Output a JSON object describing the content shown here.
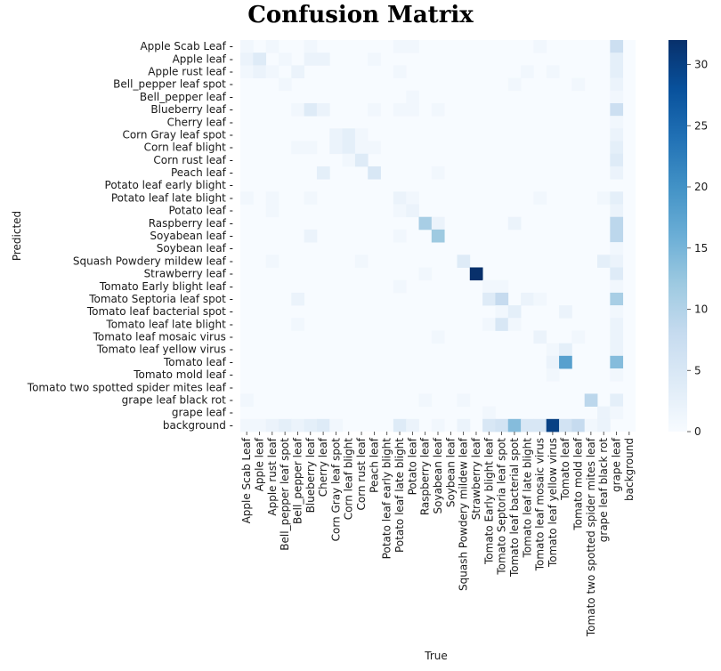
{
  "chart_data": {
    "type": "heatmap",
    "title": "Confusion Matrix",
    "xlabel": "True",
    "ylabel": "Predicted",
    "categories": [
      "Apple Scab Leaf",
      "Apple leaf",
      "Apple rust leaf",
      "Bell_pepper leaf spot",
      "Bell_pepper leaf",
      "Blueberry leaf",
      "Cherry leaf",
      "Corn Gray leaf spot",
      "Corn leaf blight",
      "Corn rust leaf",
      "Peach leaf",
      "Potato leaf early blight",
      "Potato leaf late blight",
      "Potato leaf",
      "Raspberry leaf",
      "Soyabean leaf",
      "Soybean leaf",
      "Squash Powdery mildew leaf",
      "Strawberry leaf",
      "Tomato Early blight leaf",
      "Tomato Septoria leaf spot",
      "Tomato leaf bacterial spot",
      "Tomato leaf late blight",
      "Tomato leaf mosaic virus",
      "Tomato leaf yellow virus",
      "Tomato leaf",
      "Tomato mold leaf",
      "Tomato two spotted spider mites leaf",
      "grape leaf black rot",
      "grape leaf",
      "background"
    ],
    "colorbar": {
      "min": 0,
      "max": 32,
      "ticks": [
        0,
        5,
        10,
        15,
        20,
        25,
        30
      ],
      "low_color": "#f7fbff",
      "high_color": "#08306b"
    },
    "cells": [
      [
        0,
        0,
        1
      ],
      [
        0,
        2,
        1
      ],
      [
        0,
        5,
        1
      ],
      [
        0,
        12,
        1
      ],
      [
        0,
        13,
        1
      ],
      [
        0,
        23,
        1
      ],
      [
        0,
        29,
        7
      ],
      [
        1,
        0,
        2
      ],
      [
        1,
        1,
        4
      ],
      [
        1,
        3,
        1
      ],
      [
        1,
        5,
        2
      ],
      [
        1,
        6,
        2
      ],
      [
        1,
        10,
        1
      ],
      [
        1,
        29,
        3
      ],
      [
        2,
        0,
        1
      ],
      [
        2,
        1,
        2
      ],
      [
        2,
        2,
        1
      ],
      [
        2,
        4,
        2
      ],
      [
        2,
        12,
        1
      ],
      [
        2,
        22,
        1
      ],
      [
        2,
        24,
        1
      ],
      [
        2,
        29,
        3
      ],
      [
        3,
        3,
        1
      ],
      [
        3,
        21,
        1
      ],
      [
        3,
        26,
        1
      ],
      [
        3,
        29,
        2
      ],
      [
        4,
        13,
        1
      ],
      [
        4,
        29,
        1
      ],
      [
        5,
        4,
        1
      ],
      [
        5,
        5,
        4
      ],
      [
        5,
        6,
        2
      ],
      [
        5,
        10,
        1
      ],
      [
        5,
        12,
        1
      ],
      [
        5,
        13,
        1
      ],
      [
        5,
        15,
        1
      ],
      [
        5,
        29,
        7
      ],
      [
        6,
        29,
        1
      ],
      [
        7,
        7,
        2
      ],
      [
        7,
        8,
        3
      ],
      [
        7,
        9,
        1
      ],
      [
        7,
        29,
        2
      ],
      [
        8,
        4,
        1
      ],
      [
        8,
        5,
        1
      ],
      [
        8,
        7,
        2
      ],
      [
        8,
        8,
        3
      ],
      [
        8,
        9,
        1
      ],
      [
        8,
        10,
        1
      ],
      [
        8,
        29,
        3
      ],
      [
        9,
        8,
        1
      ],
      [
        9,
        9,
        4
      ],
      [
        9,
        29,
        4
      ],
      [
        10,
        6,
        3
      ],
      [
        10,
        10,
        5
      ],
      [
        10,
        15,
        1
      ],
      [
        10,
        29,
        2
      ],
      [
        12,
        0,
        1
      ],
      [
        12,
        2,
        1
      ],
      [
        12,
        5,
        1
      ],
      [
        12,
        12,
        2
      ],
      [
        12,
        13,
        1
      ],
      [
        12,
        23,
        1
      ],
      [
        12,
        28,
        1
      ],
      [
        12,
        29,
        3
      ],
      [
        13,
        2,
        1
      ],
      [
        13,
        12,
        1
      ],
      [
        13,
        13,
        2
      ],
      [
        13,
        29,
        2
      ],
      [
        14,
        14,
        11
      ],
      [
        14,
        15,
        2
      ],
      [
        14,
        21,
        2
      ],
      [
        14,
        29,
        9
      ],
      [
        15,
        5,
        2
      ],
      [
        15,
        12,
        1
      ],
      [
        15,
        15,
        12
      ],
      [
        15,
        29,
        9
      ],
      [
        16,
        29,
        1
      ],
      [
        17,
        2,
        1
      ],
      [
        17,
        9,
        1
      ],
      [
        17,
        17,
        4
      ],
      [
        17,
        28,
        3
      ],
      [
        17,
        29,
        2
      ],
      [
        18,
        14,
        1
      ],
      [
        18,
        18,
        32
      ],
      [
        18,
        29,
        4
      ],
      [
        19,
        12,
        1
      ],
      [
        19,
        19,
        1
      ],
      [
        19,
        20,
        1
      ],
      [
        19,
        29,
        1
      ],
      [
        20,
        4,
        2
      ],
      [
        20,
        19,
        4
      ],
      [
        20,
        20,
        8
      ],
      [
        20,
        22,
        2
      ],
      [
        20,
        23,
        1
      ],
      [
        20,
        29,
        11
      ],
      [
        21,
        20,
        1
      ],
      [
        21,
        21,
        3
      ],
      [
        21,
        25,
        2
      ],
      [
        21,
        29,
        1
      ],
      [
        22,
        4,
        1
      ],
      [
        22,
        19,
        1
      ],
      [
        22,
        20,
        5
      ],
      [
        22,
        21,
        1
      ],
      [
        22,
        29,
        2
      ],
      [
        23,
        15,
        1
      ],
      [
        23,
        23,
        2
      ],
      [
        23,
        26,
        1
      ],
      [
        23,
        29,
        2
      ],
      [
        24,
        24,
        1
      ],
      [
        24,
        25,
        3
      ],
      [
        24,
        29,
        2
      ],
      [
        25,
        24,
        2
      ],
      [
        25,
        25,
        18
      ],
      [
        25,
        29,
        14
      ],
      [
        26,
        24,
        1
      ],
      [
        26,
        29,
        1
      ],
      [
        28,
        0,
        1
      ],
      [
        28,
        14,
        1
      ],
      [
        28,
        17,
        1
      ],
      [
        28,
        27,
        9
      ],
      [
        28,
        29,
        3
      ],
      [
        29,
        19,
        1
      ],
      [
        29,
        28,
        2
      ],
      [
        29,
        29,
        1
      ],
      [
        30,
        0,
        1
      ],
      [
        30,
        1,
        1
      ],
      [
        30,
        2,
        2
      ],
      [
        30,
        3,
        3
      ],
      [
        30,
        4,
        2
      ],
      [
        30,
        5,
        3
      ],
      [
        30,
        6,
        4
      ],
      [
        30,
        7,
        1
      ],
      [
        30,
        12,
        4
      ],
      [
        30,
        13,
        2
      ],
      [
        30,
        15,
        1
      ],
      [
        30,
        17,
        2
      ],
      [
        30,
        19,
        5
      ],
      [
        30,
        20,
        6
      ],
      [
        30,
        21,
        14
      ],
      [
        30,
        22,
        5
      ],
      [
        30,
        23,
        5
      ],
      [
        30,
        24,
        30
      ],
      [
        30,
        25,
        6
      ],
      [
        30,
        26,
        8
      ],
      [
        30,
        27,
        1
      ],
      [
        30,
        28,
        2
      ]
    ]
  }
}
